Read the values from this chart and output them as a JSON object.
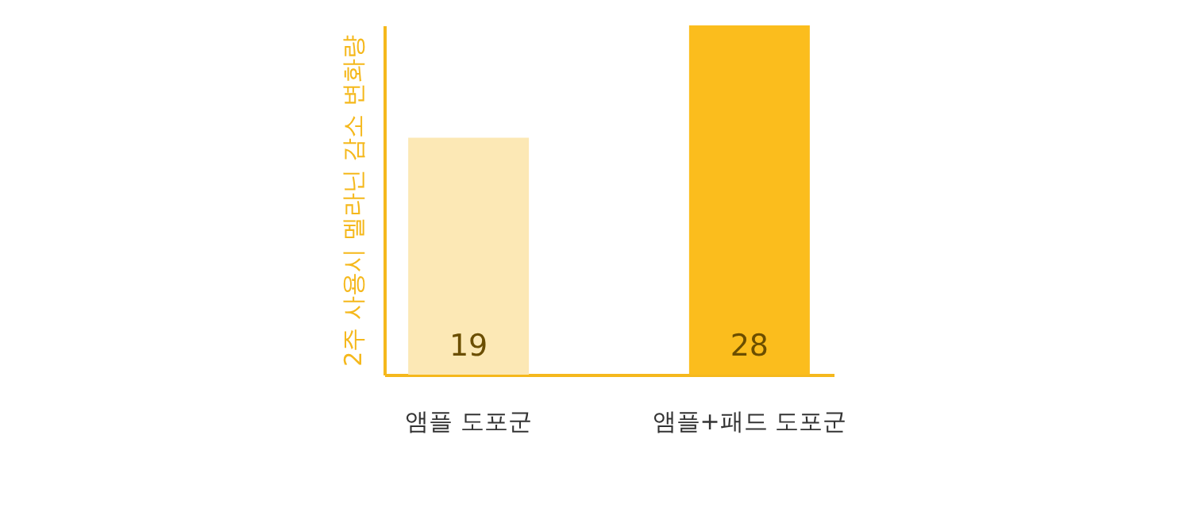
{
  "chart_data": {
    "type": "bar",
    "ylabel": "2주 사용시 멜라닌 감소 변화량",
    "categories": [
      "앰플 도포군",
      "앰플+패드 도포군"
    ],
    "values": [
      19,
      28
    ],
    "colors": [
      "#fce8b5",
      "#fbbd1d"
    ],
    "data_labels": true,
    "grid": false
  }
}
